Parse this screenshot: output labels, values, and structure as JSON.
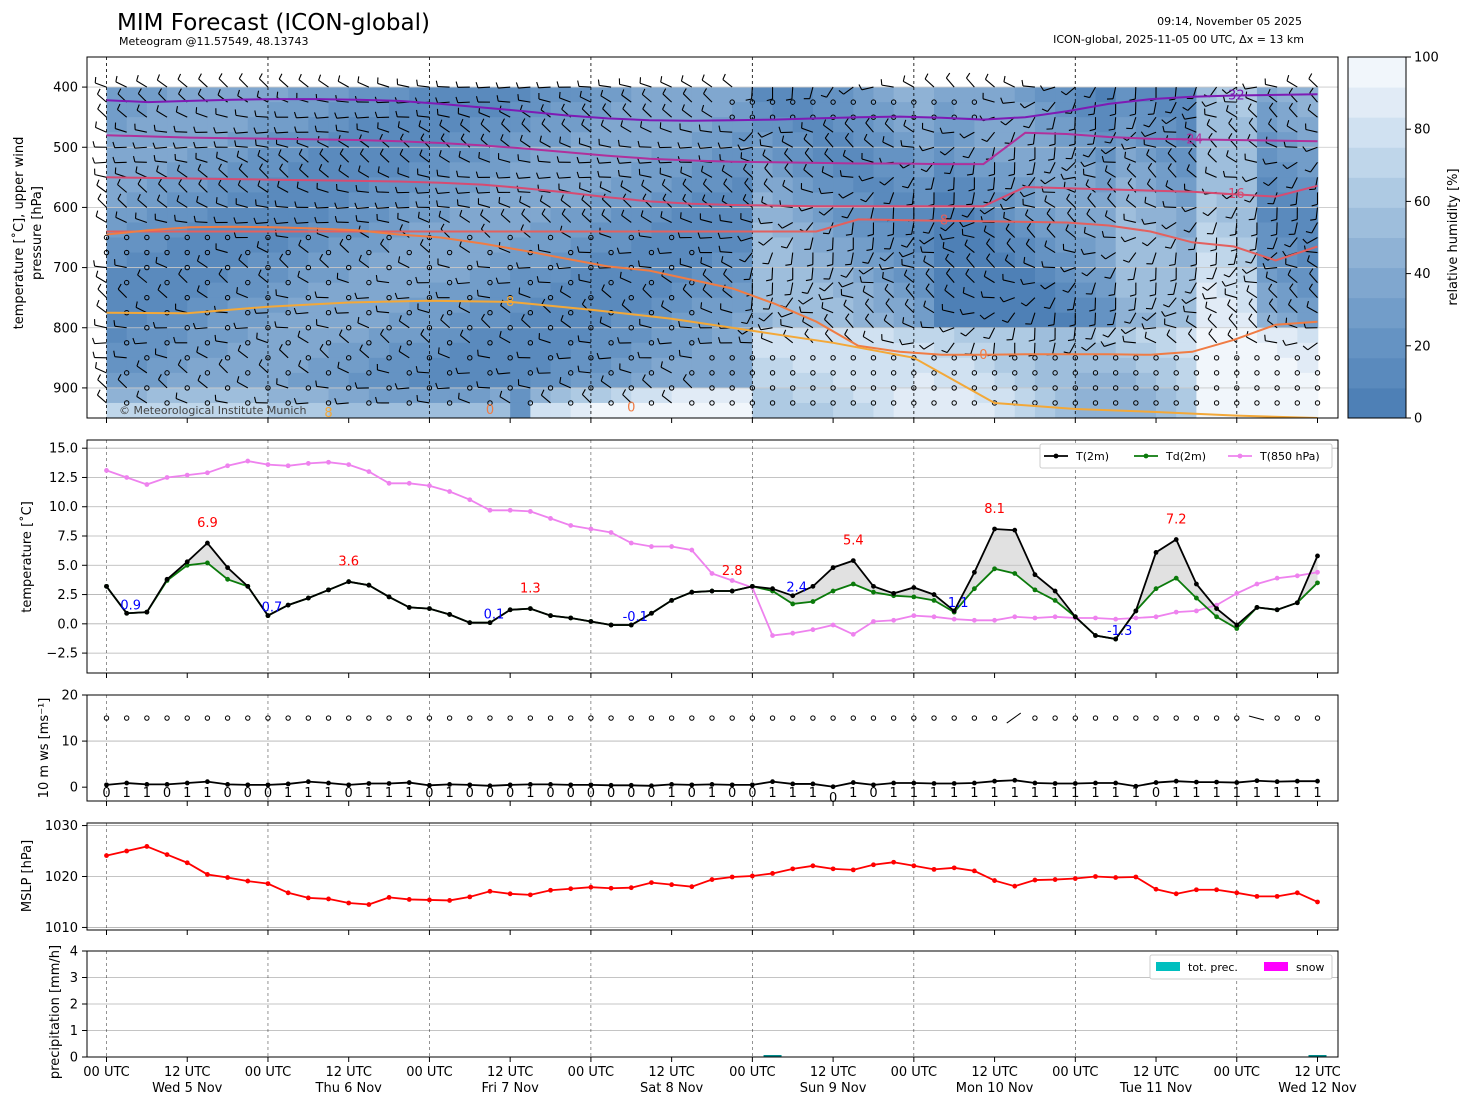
{
  "header": {
    "title": "MIM Forecast (ICON-global)",
    "subtitle": "Meteogram @11.57549, 48.13743",
    "run_time": "09:14, November 05 2025",
    "model_info": "ICON-global, 2025-11-05 00 UTC, Δx = 13 km",
    "copyright": "© Meteorological Institute Munich"
  },
  "time_axis": {
    "tick_labels": [
      "00 UTC",
      "12 UTC",
      "00 UTC",
      "12 UTC",
      "00 UTC",
      "12 UTC",
      "00 UTC",
      "12 UTC",
      "00 UTC",
      "12 UTC",
      "00 UTC",
      "12 UTC",
      "00 UTC",
      "12 UTC",
      "00 UTC",
      "12 UTC"
    ],
    "day_labels": [
      "Wed 5 Nov",
      "Thu 6 Nov",
      "Fri 7 Nov",
      "Sat 8 Nov",
      "Sun 9 Nov",
      "Mon 10 Nov",
      "Tue 11 Nov",
      "Wed 12 Nov"
    ],
    "range_hours": [
      0,
      180
    ],
    "step_hours": 3
  },
  "chart_data": [
    {
      "type": "heatmap",
      "id": "upper",
      "ylabel": "temperature [˚C], upper wind pressure [hPa]",
      "ylabel_lines": [
        "temperature [˚C], upper wind",
        "pressure [hPa]"
      ],
      "ylim": [
        950,
        350
      ],
      "yticks": [
        400,
        500,
        600,
        700,
        800,
        900
      ],
      "colorbar": {
        "label": "relative humidity [%]",
        "ticks": [
          0,
          20,
          40,
          60,
          80,
          100
        ],
        "colors": [
          "#4e80b6",
          "#5a8abd",
          "#6593c3",
          "#729dc9",
          "#80a7cf",
          "#8fb2d5",
          "#9ebedc",
          "#aecae3",
          "#bfd6ea",
          "#d0e1f1",
          "#e1ebf6",
          "#f1f6fb"
        ]
      },
      "contours": [
        {
          "label": "-32",
          "color": "#7e1ab4",
          "label_x": 166,
          "pressure": [
            422,
            425,
            423,
            421,
            420,
            420,
            421,
            423,
            428,
            434,
            440,
            447,
            452,
            455,
            456,
            455,
            454,
            452,
            450,
            449,
            451,
            454,
            450,
            440,
            428,
            420,
            416,
            414,
            413,
            412
          ]
        },
        {
          "label": "-24",
          "color": "#b0309b",
          "label_x": 164,
          "pressure": [
            480,
            482,
            484,
            485,
            486,
            487,
            488,
            490,
            493,
            497,
            502,
            508,
            514,
            519,
            522,
            524,
            525,
            526,
            527,
            527,
            528,
            528,
            476,
            478,
            483,
            486,
            487,
            488,
            489,
            490
          ]
        },
        {
          "label": "-16",
          "color": "#d64b72",
          "label_x": 165,
          "pressure": [
            550,
            551,
            552,
            553,
            554,
            555,
            556,
            557,
            559,
            562,
            568,
            575,
            583,
            590,
            594,
            596,
            597,
            598,
            598,
            598,
            598,
            598,
            566,
            568,
            570,
            572,
            574,
            578,
            582,
            564
          ]
        },
        {
          "label": "-8",
          "color": "#e3605e",
          "label_x": 126,
          "pressure": [
            640,
            640,
            640,
            640,
            640,
            640,
            640,
            640,
            640,
            640,
            640,
            640,
            640,
            640,
            640,
            640,
            640,
            640,
            620,
            621,
            622,
            623,
            624,
            625,
            630,
            640,
            658,
            665,
            688,
            665
          ]
        },
        {
          "label": "0",
          "color": "#f07c44",
          "label_x": 128,
          "pressure": [
            645,
            638,
            633,
            632,
            633,
            635,
            638,
            645,
            650,
            660,
            672,
            685,
            698,
            705,
            720,
            735,
            760,
            790,
            830,
            840,
            845,
            845,
            844,
            844,
            844,
            845,
            840,
            820,
            795,
            790
          ]
        },
        {
          "label": "8",
          "color": "#f3a838",
          "label_x": 55,
          "pressure": [
            775,
            776,
            765,
            758,
            755,
            757,
            770,
            785,
            805,
            825,
            850,
            925,
            935,
            940,
            946,
            950
          ]
        }
      ],
      "data_labels": [
        "-32",
        "-24",
        "-16",
        "-8",
        "0",
        "8",
        "0",
        "0",
        "0"
      ]
    },
    {
      "type": "line",
      "id": "temperature",
      "ylabel": "temperature [˚C]",
      "ylim": [
        -4.2,
        15.7
      ],
      "yticks": [
        -2.5,
        0.0,
        2.5,
        5.0,
        7.5,
        10.0,
        12.5,
        15.0
      ],
      "ytick_labels": [
        "−2.5",
        "0.0",
        "2.5",
        "5.0",
        "7.5",
        "10.0",
        "12.5",
        "15.0"
      ],
      "x_hours_step": 3,
      "series": [
        {
          "name": "T(2m)",
          "color": "#000000",
          "values": [
            3.2,
            0.9,
            1.0,
            3.8,
            5.3,
            6.9,
            4.8,
            3.2,
            0.7,
            1.6,
            2.2,
            2.9,
            3.6,
            3.3,
            2.3,
            1.4,
            1.3,
            0.8,
            0.1,
            0.1,
            1.2,
            1.3,
            0.7,
            0.5,
            0.2,
            -0.1,
            -0.1,
            0.9,
            2.0,
            2.7,
            2.8,
            2.8,
            3.2,
            3.0,
            2.4,
            3.2,
            4.8,
            5.4,
            3.2,
            2.6,
            3.1,
            2.5,
            1.1,
            4.4,
            8.1,
            8.0,
            4.2,
            2.8,
            0.6,
            -1.0,
            -1.3,
            1.1,
            6.1,
            7.2,
            3.4,
            1.3,
            -0.1,
            1.4,
            1.2,
            1.8,
            5.8
          ]
        },
        {
          "name": "Td(2m)",
          "color": "#0b7a0b",
          "values": [
            3.2,
            0.9,
            1.0,
            3.7,
            5.0,
            5.2,
            3.8,
            3.2,
            0.7,
            1.6,
            2.2,
            2.9,
            3.6,
            3.3,
            2.3,
            1.4,
            1.3,
            0.8,
            0.1,
            0.1,
            1.2,
            1.3,
            0.7,
            0.5,
            0.2,
            -0.1,
            -0.1,
            0.9,
            2.0,
            2.7,
            2.8,
            2.8,
            3.2,
            2.8,
            1.7,
            1.9,
            2.8,
            3.4,
            2.7,
            2.4,
            2.3,
            2.0,
            1.0,
            3.0,
            4.7,
            4.3,
            2.9,
            2.0,
            0.6,
            -1.0,
            -1.3,
            1.1,
            3.0,
            3.9,
            2.2,
            0.6,
            -0.4,
            1.4,
            1.2,
            1.8,
            3.5
          ]
        },
        {
          "name": "T(850 hPa)",
          "color": "#ee82ee",
          "values": [
            13.1,
            12.5,
            11.9,
            12.5,
            12.7,
            12.9,
            13.5,
            13.9,
            13.6,
            13.5,
            13.7,
            13.8,
            13.6,
            13.0,
            12.0,
            12.0,
            11.8,
            11.3,
            10.6,
            9.7,
            9.7,
            9.6,
            9.0,
            8.4,
            8.1,
            7.8,
            6.9,
            6.6,
            6.6,
            6.3,
            4.3,
            3.7,
            3.1,
            -1.0,
            -0.8,
            -0.5,
            -0.1,
            -0.9,
            0.2,
            0.3,
            0.7,
            0.6,
            0.4,
            0.3,
            0.3,
            0.6,
            0.5,
            0.6,
            0.5,
            0.5,
            0.4,
            0.5,
            0.6,
            1.0,
            1.1,
            1.6,
            2.6,
            3.4,
            3.9,
            4.1,
            4.4
          ]
        }
      ],
      "max_labels": [
        {
          "text": "6.9",
          "hour": 15,
          "value": 6.9
        },
        {
          "text": "3.6",
          "hour": 36,
          "value": 3.6
        },
        {
          "text": "1.3",
          "hour": 63,
          "value": 1.3
        },
        {
          "text": "2.8",
          "hour": 93,
          "value": 2.8
        },
        {
          "text": "5.4",
          "hour": 111,
          "value": 5.4
        },
        {
          "text": "8.1",
          "hour": 132,
          "value": 8.1
        },
        {
          "text": "7.2",
          "hour": 159,
          "value": 7.2
        }
      ],
      "min_labels": [
        {
          "text": "0.9",
          "hour": 3,
          "value": 0.9
        },
        {
          "text": "0.7",
          "hour": 24,
          "value": 0.7
        },
        {
          "text": "0.1",
          "hour": 57,
          "value": 0.1
        },
        {
          "text": "-0.1",
          "hour": 78,
          "value": -0.1
        },
        {
          "text": "2.4",
          "hour": 102,
          "value": 2.4
        },
        {
          "text": "1.1",
          "hour": 126,
          "value": 1.1
        },
        {
          "text": "-1.3",
          "hour": 150,
          "value": -1.3
        }
      ],
      "legend": {
        "placement": "top-right"
      }
    },
    {
      "type": "line",
      "id": "wind",
      "ylabel": "10 m ws [ms⁻¹]",
      "ylim": [
        -3,
        20
      ],
      "yticks": [
        0,
        10,
        20
      ],
      "series": [
        {
          "name": "wind speed",
          "color": "#000000",
          "values": [
            0.5,
            0.9,
            0.6,
            0.6,
            0.9,
            1.2,
            0.6,
            0.5,
            0.5,
            0.7,
            1.2,
            0.9,
            0.5,
            0.8,
            0.8,
            1.0,
            0.4,
            0.6,
            0.5,
            0.3,
            0.5,
            0.6,
            0.6,
            0.5,
            0.5,
            0.4,
            0.4,
            0.3,
            0.6,
            0.5,
            0.6,
            0.5,
            0.5,
            1.2,
            0.7,
            0.7,
            0.1,
            1.0,
            0.5,
            0.9,
            0.9,
            0.8,
            0.8,
            0.9,
            1.3,
            1.5,
            0.9,
            0.8,
            0.8,
            0.9,
            0.9,
            0.2,
            1.0,
            1.3,
            1.1,
            1.1,
            1.0,
            1.4,
            1.2,
            1.3,
            1.3
          ]
        }
      ],
      "digit_labels": [
        "0",
        "1",
        "1",
        "0",
        "1",
        "1",
        "0",
        "0",
        "0",
        "1",
        "1",
        "1",
        "0",
        "1",
        "1",
        "1",
        "0",
        "1",
        "0",
        "0",
        "0",
        "1",
        "0",
        "0",
        "0",
        "0",
        "0",
        "0",
        "1",
        "0",
        "1",
        "0",
        "0",
        "1",
        "1",
        "1",
        "0",
        "1",
        "0",
        "1",
        "1",
        "1",
        "1",
        "1",
        "1",
        "1",
        "1",
        "1",
        "1",
        "1",
        "1",
        "1",
        "0",
        "1",
        "1",
        "1",
        "1",
        "1",
        "1",
        "1",
        "1"
      ]
    },
    {
      "type": "line",
      "id": "mslp",
      "ylabel": "MSLP [hPa]",
      "ylim": [
        1009.5,
        1030.5
      ],
      "yticks": [
        1010,
        1020,
        1030
      ],
      "series": [
        {
          "name": "MSLP",
          "color": "#ff0000",
          "values": [
            1024.1,
            1025.0,
            1025.9,
            1024.3,
            1022.7,
            1020.4,
            1019.8,
            1019.1,
            1018.6,
            1016.8,
            1015.8,
            1015.6,
            1014.8,
            1014.5,
            1015.9,
            1015.5,
            1015.4,
            1015.3,
            1016.0,
            1017.1,
            1016.6,
            1016.4,
            1017.3,
            1017.6,
            1017.9,
            1017.7,
            1017.8,
            1018.8,
            1018.4,
            1018.0,
            1019.4,
            1019.9,
            1020.1,
            1020.6,
            1021.5,
            1022.1,
            1021.5,
            1021.3,
            1022.3,
            1022.8,
            1022.1,
            1021.4,
            1021.7,
            1021.1,
            1019.2,
            1018.1,
            1019.3,
            1019.4,
            1019.6,
            1020.0,
            1019.8,
            1019.9,
            1017.5,
            1016.6,
            1017.4,
            1017.4,
            1016.8,
            1016.1,
            1016.1,
            1016.8,
            1015.0
          ]
        }
      ]
    },
    {
      "type": "bar",
      "id": "precip",
      "ylabel": "precipitation [mm/h]",
      "ylim": [
        0,
        4
      ],
      "yticks": [
        0,
        1,
        2,
        3,
        4
      ],
      "series": [
        {
          "name": "tot. prec.",
          "color": "#00bfbf",
          "values": [
            0,
            0,
            0,
            0,
            0,
            0,
            0,
            0,
            0,
            0,
            0,
            0,
            0,
            0,
            0,
            0,
            0,
            0,
            0,
            0,
            0,
            0,
            0,
            0,
            0,
            0,
            0,
            0,
            0,
            0,
            0,
            0,
            0,
            0.02,
            0,
            0,
            0,
            0,
            0,
            0,
            0,
            0,
            0,
            0,
            0,
            0,
            0,
            0,
            0,
            0,
            0,
            0,
            0,
            0,
            0,
            0,
            0,
            0,
            0,
            0,
            0.02
          ]
        },
        {
          "name": "snow",
          "color": "#ff00ff",
          "values": [
            0,
            0,
            0,
            0,
            0,
            0,
            0,
            0,
            0,
            0,
            0,
            0,
            0,
            0,
            0,
            0,
            0,
            0,
            0,
            0,
            0,
            0,
            0,
            0,
            0,
            0,
            0,
            0,
            0,
            0,
            0,
            0,
            0,
            0,
            0,
            0,
            0,
            0,
            0,
            0,
            0,
            0,
            0,
            0,
            0,
            0,
            0,
            0,
            0,
            0,
            0,
            0,
            0,
            0,
            0,
            0,
            0,
            0,
            0,
            0,
            0
          ]
        }
      ],
      "legend": {
        "placement": "top-right"
      }
    }
  ]
}
